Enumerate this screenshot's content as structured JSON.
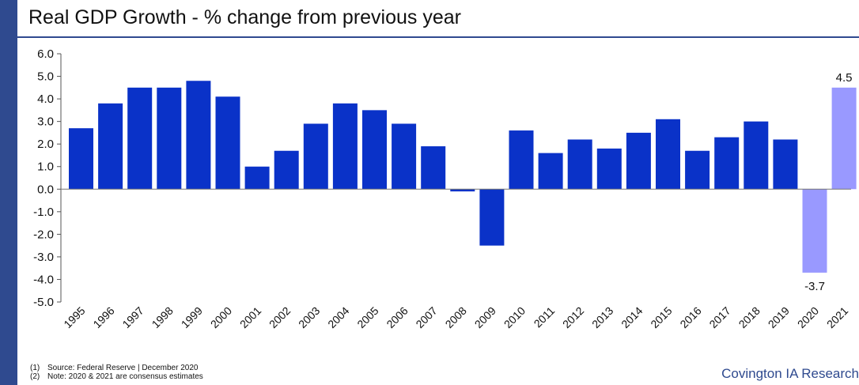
{
  "title": "Real GDP Growth - % change from previous year",
  "notes": [
    {
      "num": "(1)",
      "text": "Source: Federal Reserve | December 2020"
    },
    {
      "num": "(2)",
      "text": "Note: 2020 & 2021 are consensus estimates"
    }
  ],
  "brand": "Covington IA Research",
  "colors": {
    "actual": "#0a32c8",
    "estimate": "#9999ff",
    "accent": "#2f4a8f"
  },
  "chart_data": {
    "type": "bar",
    "title": "Real GDP Growth - % change from previous year",
    "xlabel": "",
    "ylabel": "",
    "ylim": [
      -5.0,
      6.0
    ],
    "yticks": [
      "6.0",
      "5.0",
      "4.0",
      "3.0",
      "2.0",
      "1.0",
      "0.0",
      "-1.0",
      "-2.0",
      "-3.0",
      "-4.0",
      "-5.0"
    ],
    "grid": false,
    "categories": [
      "1995",
      "1996",
      "1997",
      "1998",
      "1999",
      "2000",
      "2001",
      "2002",
      "2003",
      "2004",
      "2005",
      "2006",
      "2007",
      "2008",
      "2009",
      "2010",
      "2011",
      "2012",
      "2013",
      "2014",
      "2015",
      "2016",
      "2017",
      "2018",
      "2019",
      "2020",
      "2021"
    ],
    "values": [
      2.7,
      3.8,
      4.5,
      4.5,
      4.8,
      4.1,
      1.0,
      1.7,
      2.9,
      3.8,
      3.5,
      2.9,
      1.9,
      -0.1,
      -2.5,
      2.6,
      1.6,
      2.2,
      1.8,
      2.5,
      3.1,
      1.7,
      2.3,
      3.0,
      2.2,
      -3.7,
      4.5
    ],
    "estimate_categories": [
      "2020",
      "2021"
    ],
    "data_labels": {
      "2020": "-3.7",
      "2021": "4.5"
    }
  }
}
